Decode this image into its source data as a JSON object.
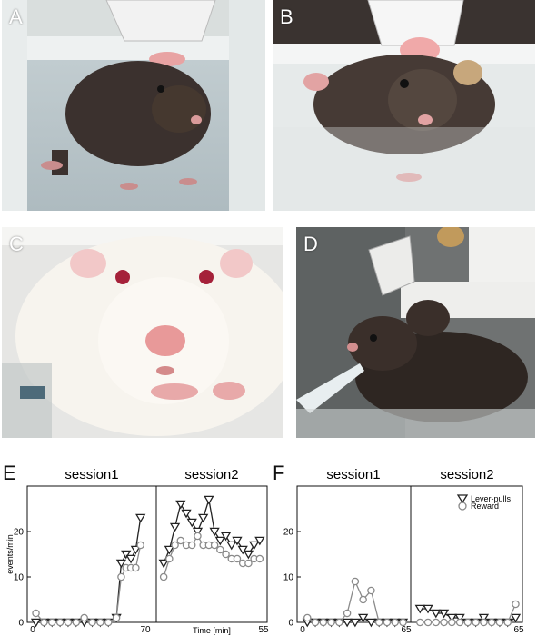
{
  "panels": {
    "A": "A",
    "B": "B",
    "C": "C",
    "D": "D",
    "E": "E",
    "F": "F"
  },
  "photos": {
    "A": {
      "icon": "mouse-under-water-spout-photo"
    },
    "B": {
      "icon": "mouse-drinking-photo"
    },
    "C": {
      "icon": "white-rat-closeup-photo"
    },
    "D": {
      "icon": "mouse-lever-setup-photo"
    }
  },
  "colors": {
    "lever": "#222222",
    "reward": "#8a8a8a"
  },
  "chart_data": [
    {
      "type": "line",
      "panel": "E",
      "subplots": [
        {
          "title": "session1",
          "x_ticks": [
            "0",
            "70"
          ],
          "xlim": [
            0,
            70
          ]
        },
        {
          "title": "session2",
          "x_ticks": [
            "55"
          ],
          "xlim": [
            0,
            55
          ]
        }
      ],
      "ylabel": "events/min",
      "xlabel": "Time [min]",
      "ylim": [
        0,
        30
      ],
      "y_ticks": [
        "0",
        "10",
        "20"
      ],
      "series": [
        {
          "name": "Lever-pulls",
          "marker": "triangle-down",
          "session1": {
            "x": [
              2,
              7,
              12,
              17,
              22,
              27,
              32,
              37,
              42,
              47,
              52,
              55,
              58,
              61,
              64,
              67
            ],
            "y": [
              0,
              0,
              0,
              0,
              0,
              0,
              0,
              0,
              0,
              0,
              1,
              13,
              15,
              14,
              16,
              23
            ]
          },
          "session2": {
            "x": [
              2,
              5,
              8,
              11,
              14,
              17,
              20,
              23,
              26,
              29,
              32,
              35,
              38,
              41,
              44,
              47,
              50,
              53
            ],
            "y": [
              13,
              16,
              21,
              26,
              24,
              22,
              20,
              23,
              27,
              20,
              18,
              19,
              17,
              18,
              16,
              15,
              17,
              18
            ]
          }
        },
        {
          "name": "Reward",
          "marker": "circle",
          "session1": {
            "x": [
              2,
              7,
              12,
              17,
              22,
              27,
              32,
              37,
              42,
              47,
              52,
              55,
              58,
              61,
              64,
              67
            ],
            "y": [
              2,
              0,
              0,
              0,
              0,
              0,
              1,
              0,
              0,
              0,
              1,
              10,
              12,
              12,
              12,
              17
            ]
          },
          "session2": {
            "x": [
              2,
              5,
              8,
              11,
              14,
              17,
              20,
              23,
              26,
              29,
              32,
              35,
              38,
              41,
              44,
              47,
              50,
              53
            ],
            "y": [
              10,
              14,
              17,
              18,
              17,
              17,
              19,
              17,
              17,
              17,
              16,
              15,
              14,
              14,
              13,
              13,
              14,
              14
            ]
          }
        }
      ]
    },
    {
      "type": "line",
      "panel": "F",
      "subplots": [
        {
          "title": "session1",
          "x_ticks": [
            "0",
            "65"
          ],
          "xlim": [
            0,
            65
          ]
        },
        {
          "title": "session2",
          "x_ticks": [
            "65"
          ],
          "xlim": [
            0,
            65
          ]
        }
      ],
      "ylim": [
        0,
        30
      ],
      "y_ticks": [
        "0",
        "10",
        "20"
      ],
      "legend": {
        "position": "top-right",
        "entries": [
          "Lever-pulls",
          "Reward"
        ]
      },
      "series": [
        {
          "name": "Lever-pulls",
          "marker": "triangle-down",
          "session1": {
            "x": [
              3,
              8,
              13,
              18,
              23,
              28,
              33,
              38,
              43,
              48,
              53,
              58,
              63
            ],
            "y": [
              0,
              0,
              0,
              0,
              0,
              0,
              0,
              1,
              0,
              0,
              0,
              0,
              0
            ]
          },
          "session2": {
            "x": [
              3,
              8,
              13,
              18,
              23,
              28,
              33,
              38,
              43,
              48,
              53,
              58,
              63
            ],
            "y": [
              3,
              3,
              2,
              2,
              1,
              1,
              0,
              0,
              1,
              0,
              0,
              0,
              1
            ]
          }
        },
        {
          "name": "Reward",
          "marker": "circle",
          "session1": {
            "x": [
              3,
              8,
              13,
              18,
              23,
              28,
              33,
              38,
              43,
              48,
              53,
              58,
              63
            ],
            "y": [
              1,
              0,
              0,
              0,
              0,
              2,
              9,
              5,
              7,
              0,
              0,
              0,
              0
            ]
          },
          "session2": {
            "x": [
              3,
              8,
              13,
              18,
              23,
              28,
              33,
              38,
              43,
              48,
              53,
              58,
              63
            ],
            "y": [
              0,
              0,
              0,
              0,
              0,
              0,
              0,
              0,
              0,
              0,
              0,
              0,
              4
            ]
          }
        }
      ]
    }
  ]
}
